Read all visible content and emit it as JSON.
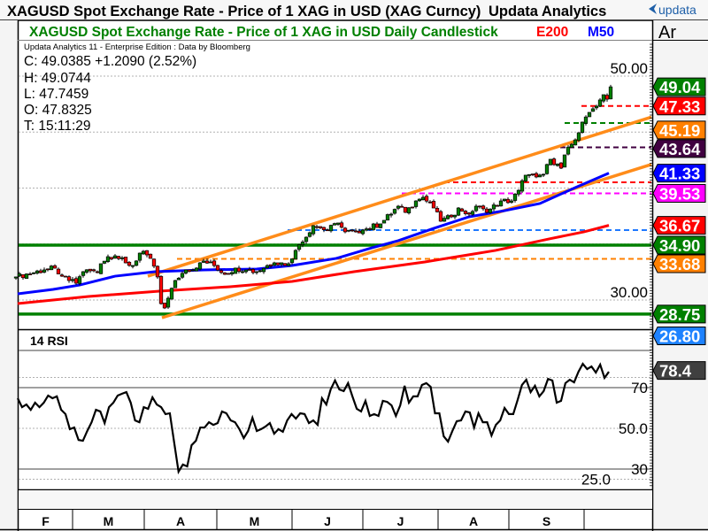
{
  "window": {
    "title": "XAGUSD Spot Exchange Rate - Price of 1 XAG in USD (XAG Curncy)",
    "vendor": "Updata Analytics",
    "logo_text": "updata",
    "axis_header": "Ar"
  },
  "legend": {
    "chart_title": "XAGUSD Spot Exchange Rate - Price of 1 XAG in USD Daily Candlestick",
    "e200_label": "E200",
    "m50_label": "M50",
    "edition": "Updata Analytics 11 - Enterprise Edition : Data by Bloomberg",
    "close": "C: 49.0385  +1.2090 (2.52%)",
    "high": "H: 49.0744",
    "low": "L: 47.7459",
    "open": "O: 47.8325",
    "time": "T: 15:11:29"
  },
  "colors": {
    "up": "#008000",
    "down": "#ff0000",
    "e200": "#ff0000",
    "m50": "#0000ff",
    "trend": "#ff8c1a",
    "title_green": "#008000"
  },
  "chart_data": {
    "type": "candlestick",
    "title": "XAGUSD Spot Exchange Rate - Price of 1 XAG in USD Daily Candlestick",
    "price_axis": {
      "tick_labels": [
        "50.00",
        "30.00"
      ],
      "tick_values": [
        50,
        30
      ],
      "gridlines": [
        50,
        45,
        40,
        35,
        30
      ]
    },
    "x_labels": [
      {
        "label": "F",
        "start": -1,
        "end": 16
      },
      {
        "label": "M",
        "start": 16,
        "end": 36.25
      },
      {
        "label": "A",
        "start": 36.25,
        "end": 56.75
      },
      {
        "label": "M",
        "start": 56.75,
        "end": 78
      },
      {
        "label": "J",
        "start": 78,
        "end": 98
      },
      {
        "label": "J",
        "start": 98,
        "end": 119.25
      },
      {
        "label": "A",
        "start": 119.25,
        "end": 139.25
      },
      {
        "label": "S",
        "start": 139.25,
        "end": 160.5
      },
      {
        "label": "",
        "start": 160.5,
        "end": 180
      }
    ],
    "close_anchors": [
      [
        0,
        32.06
      ],
      [
        8,
        32.69
      ],
      [
        11,
        32.85
      ],
      [
        13,
        32.13
      ],
      [
        15,
        31.74
      ],
      [
        17,
        31.5
      ],
      [
        19,
        32.53
      ],
      [
        21,
        32.61
      ],
      [
        23,
        32.45
      ],
      [
        24,
        33.24
      ],
      [
        26,
        33.87
      ],
      [
        28,
        33.95
      ],
      [
        31,
        33.32
      ],
      [
        33,
        33.08
      ],
      [
        35,
        34.19
      ],
      [
        37,
        34.03
      ],
      [
        38,
        33.72
      ],
      [
        40,
        32.06
      ],
      [
        41,
        29.68
      ],
      [
        42,
        29.29
      ],
      [
        43,
        30.16
      ],
      [
        45,
        31.74
      ],
      [
        48,
        32.69
      ],
      [
        51,
        32.85
      ],
      [
        53,
        33.48
      ],
      [
        56,
        33.08
      ],
      [
        59,
        32.29
      ],
      [
        62,
        32.85
      ],
      [
        65,
        32.69
      ],
      [
        68,
        32.53
      ],
      [
        71,
        33.08
      ],
      [
        73,
        33.32
      ],
      [
        77,
        33.24
      ],
      [
        79,
        34.43
      ],
      [
        82,
        35.61
      ],
      [
        84,
        36.64
      ],
      [
        88,
        36.25
      ],
      [
        91,
        36.88
      ],
      [
        93,
        36.09
      ],
      [
        96,
        36.09
      ],
      [
        98,
        36.25
      ],
      [
        103,
        36.8
      ],
      [
        108,
        38.38
      ],
      [
        110,
        37.83
      ],
      [
        113,
        38.85
      ],
      [
        115,
        39.17
      ],
      [
        118,
        38.22
      ],
      [
        120,
        37.04
      ],
      [
        123,
        37.43
      ],
      [
        125,
        38.22
      ],
      [
        128,
        37.67
      ],
      [
        130,
        38.38
      ],
      [
        133,
        37.83
      ],
      [
        137,
        38.85
      ],
      [
        140,
        38.85
      ],
      [
        142,
        39.8
      ],
      [
        144,
        41.15
      ],
      [
        147,
        40.99
      ],
      [
        149,
        41.23
      ],
      [
        151,
        42.57
      ],
      [
        154,
        41.78
      ],
      [
        155,
        42.96
      ],
      [
        157,
        43.91
      ],
      [
        159,
        44.94
      ],
      [
        160,
        45.89
      ],
      [
        162,
        46.76
      ],
      [
        163,
        47.08
      ],
      [
        165,
        47.87
      ],
      [
        166,
        48.34
      ],
      [
        167,
        47.94
      ],
      [
        168,
        49.04
      ]
    ],
    "m50": [
      [
        0.5,
        30.55
      ],
      [
        10.5,
        30.95
      ],
      [
        18,
        31.34
      ],
      [
        28,
        32.13
      ],
      [
        39.25,
        32.53
      ],
      [
        53,
        32.69
      ],
      [
        68,
        32.77
      ],
      [
        78,
        33.08
      ],
      [
        90.5,
        33.72
      ],
      [
        100.5,
        34.66
      ],
      [
        108,
        35.3
      ],
      [
        118,
        36.4
      ],
      [
        128,
        37.43
      ],
      [
        138,
        37.98
      ],
      [
        148,
        38.62
      ],
      [
        158,
        40.04
      ],
      [
        167.5,
        41.33
      ]
    ],
    "e200": [
      [
        0.5,
        29.68
      ],
      [
        20.5,
        30.32
      ],
      [
        40.5,
        30.79
      ],
      [
        60.5,
        31.19
      ],
      [
        78,
        31.66
      ],
      [
        95.5,
        32.53
      ],
      [
        115.5,
        33.4
      ],
      [
        135.5,
        34.43
      ],
      [
        150.5,
        35.45
      ],
      [
        160.5,
        36.09
      ],
      [
        167.5,
        36.67
      ]
    ],
    "trendlines": [
      {
        "name": "upper-channel",
        "color": "#ff8c1a",
        "p1": [
          37.25,
          32.13
        ],
        "p2": [
          168,
          45.19
        ]
      },
      {
        "name": "lower-channel",
        "color": "#ff8c1a",
        "p1": [
          41.25,
          28.42
        ],
        "p2": [
          168,
          40.97
        ]
      }
    ],
    "hlines": [
      {
        "name": "support-34-90",
        "value": 34.9,
        "from": -1,
        "color": "#008000",
        "dashed": false
      },
      {
        "name": "support-28-75",
        "value": 28.75,
        "from": -1,
        "color": "#008000",
        "dashed": false
      },
      {
        "name": "level-33-68",
        "value": 33.68,
        "from": 45.5,
        "color": "#ff8000",
        "dashed": true
      },
      {
        "name": "level-36-25",
        "value": 36.25,
        "from": 76.75,
        "color": "#1e78ff",
        "dashed": true
      },
      {
        "name": "level-39-53",
        "value": 39.53,
        "from": 109,
        "color": "#ff00ff",
        "dashed": true
      },
      {
        "name": "level-40-51",
        "value": 40.51,
        "from": 121,
        "color": "#ff0000",
        "dashed": true
      },
      {
        "name": "level-43-64",
        "value": 43.64,
        "from": 153.75,
        "color": "#400040",
        "dashed": true
      },
      {
        "name": "level-45-81",
        "value": 45.81,
        "from": 155,
        "color": "#008000",
        "dashed": true
      },
      {
        "name": "level-47-33",
        "value": 47.33,
        "from": 159.75,
        "color": "#ff0000",
        "dashed": true
      }
    ],
    "price_labels": [
      {
        "text": "33.68",
        "value": 33.68,
        "color": "#ff8000"
      },
      {
        "text": "34.90",
        "value": 34.9,
        "color": "#008000"
      },
      {
        "text": "28.75",
        "value": 28.75,
        "color": "#008000"
      },
      {
        "text": "26.80",
        "value": 26.8,
        "color": "#1e82ff"
      },
      {
        "text": "36.67",
        "value": 36.67,
        "color": "#ff0000"
      },
      {
        "text": "39.53",
        "value": 39.53,
        "color": "#ff00ff"
      },
      {
        "text": "41.33",
        "value": 41.33,
        "color": "#0000ff"
      },
      {
        "text": "43.64",
        "value": 43.64,
        "color": "#400040"
      },
      {
        "text": "45.19",
        "value": 45.19,
        "color": "#ff8000"
      },
      {
        "text": "47.33",
        "value": 47.33,
        "color": "#ff0000"
      },
      {
        "text": "49.04",
        "value": 49.04,
        "color": "#008000"
      }
    ],
    "rsi": {
      "title": "14 RSI",
      "period": 14,
      "bands": [
        70,
        30
      ],
      "dotted": [
        75,
        50,
        25
      ],
      "tick_labels": [
        {
          "text": "70",
          "value": 70
        },
        {
          "text": "50.0",
          "value": 50
        },
        {
          "text": "30",
          "value": 30
        },
        {
          "text": "25.0",
          "value": 25
        }
      ],
      "last_label": {
        "text": "78.4",
        "value": 78.4,
        "color": "#404040"
      },
      "values": [
        64.8,
        60.4,
        61.7,
        59.1,
        62.6,
        60.4,
        62.6,
        66.1,
        64.8,
        65.7,
        59.1,
        57.0,
        49.6,
        50.4,
        44.3,
        43.9,
        48.7,
        53.0,
        59.1,
        58.3,
        52.6,
        60.4,
        62.6,
        66.1,
        67.0,
        67.8,
        62.6,
        53.9,
        53.0,
        60.4,
        59.6,
        65.2,
        61.7,
        60.4,
        57.0,
        57.4,
        43.0,
        28.7,
        32.2,
        31.3,
        41.7,
        43.9,
        50.4,
        50.4,
        53.0,
        51.7,
        52.6,
        58.3,
        57.4,
        53.9,
        53.0,
        49.6,
        45.2,
        48.7,
        55.2,
        48.7,
        49.6,
        50.9,
        52.6,
        47.4,
        49.6,
        48.3,
        53.9,
        57.0,
        54.8,
        57.4,
        57.0,
        52.6,
        53.9,
        51.7,
        64.8,
        61.7,
        69.1,
        73.5,
        69.1,
        68.3,
        72.2,
        65.7,
        59.6,
        58.3,
        63.5,
        56.1,
        57.0,
        56.1,
        63.5,
        63.0,
        61.3,
        56.1,
        61.3,
        70.9,
        62.6,
        65.7,
        65.7,
        71.3,
        72.2,
        70.4,
        57.4,
        57.4,
        46.1,
        43.5,
        48.7,
        53.5,
        53.9,
        58.3,
        57.8,
        50.4,
        57.4,
        53.0,
        53.0,
        46.5,
        51.7,
        53.9,
        60.0,
        57.0,
        57.0,
        63.9,
        71.3,
        73.9,
        67.8,
        70.9,
        65.7,
        68.3,
        74.3,
        73.5,
        62.6,
        63.5,
        72.2,
        73.9,
        72.6,
        77.8,
        81.7,
        79.1,
        80.4,
        77.4,
        81.3,
        74.8,
        77.8
      ]
    }
  }
}
